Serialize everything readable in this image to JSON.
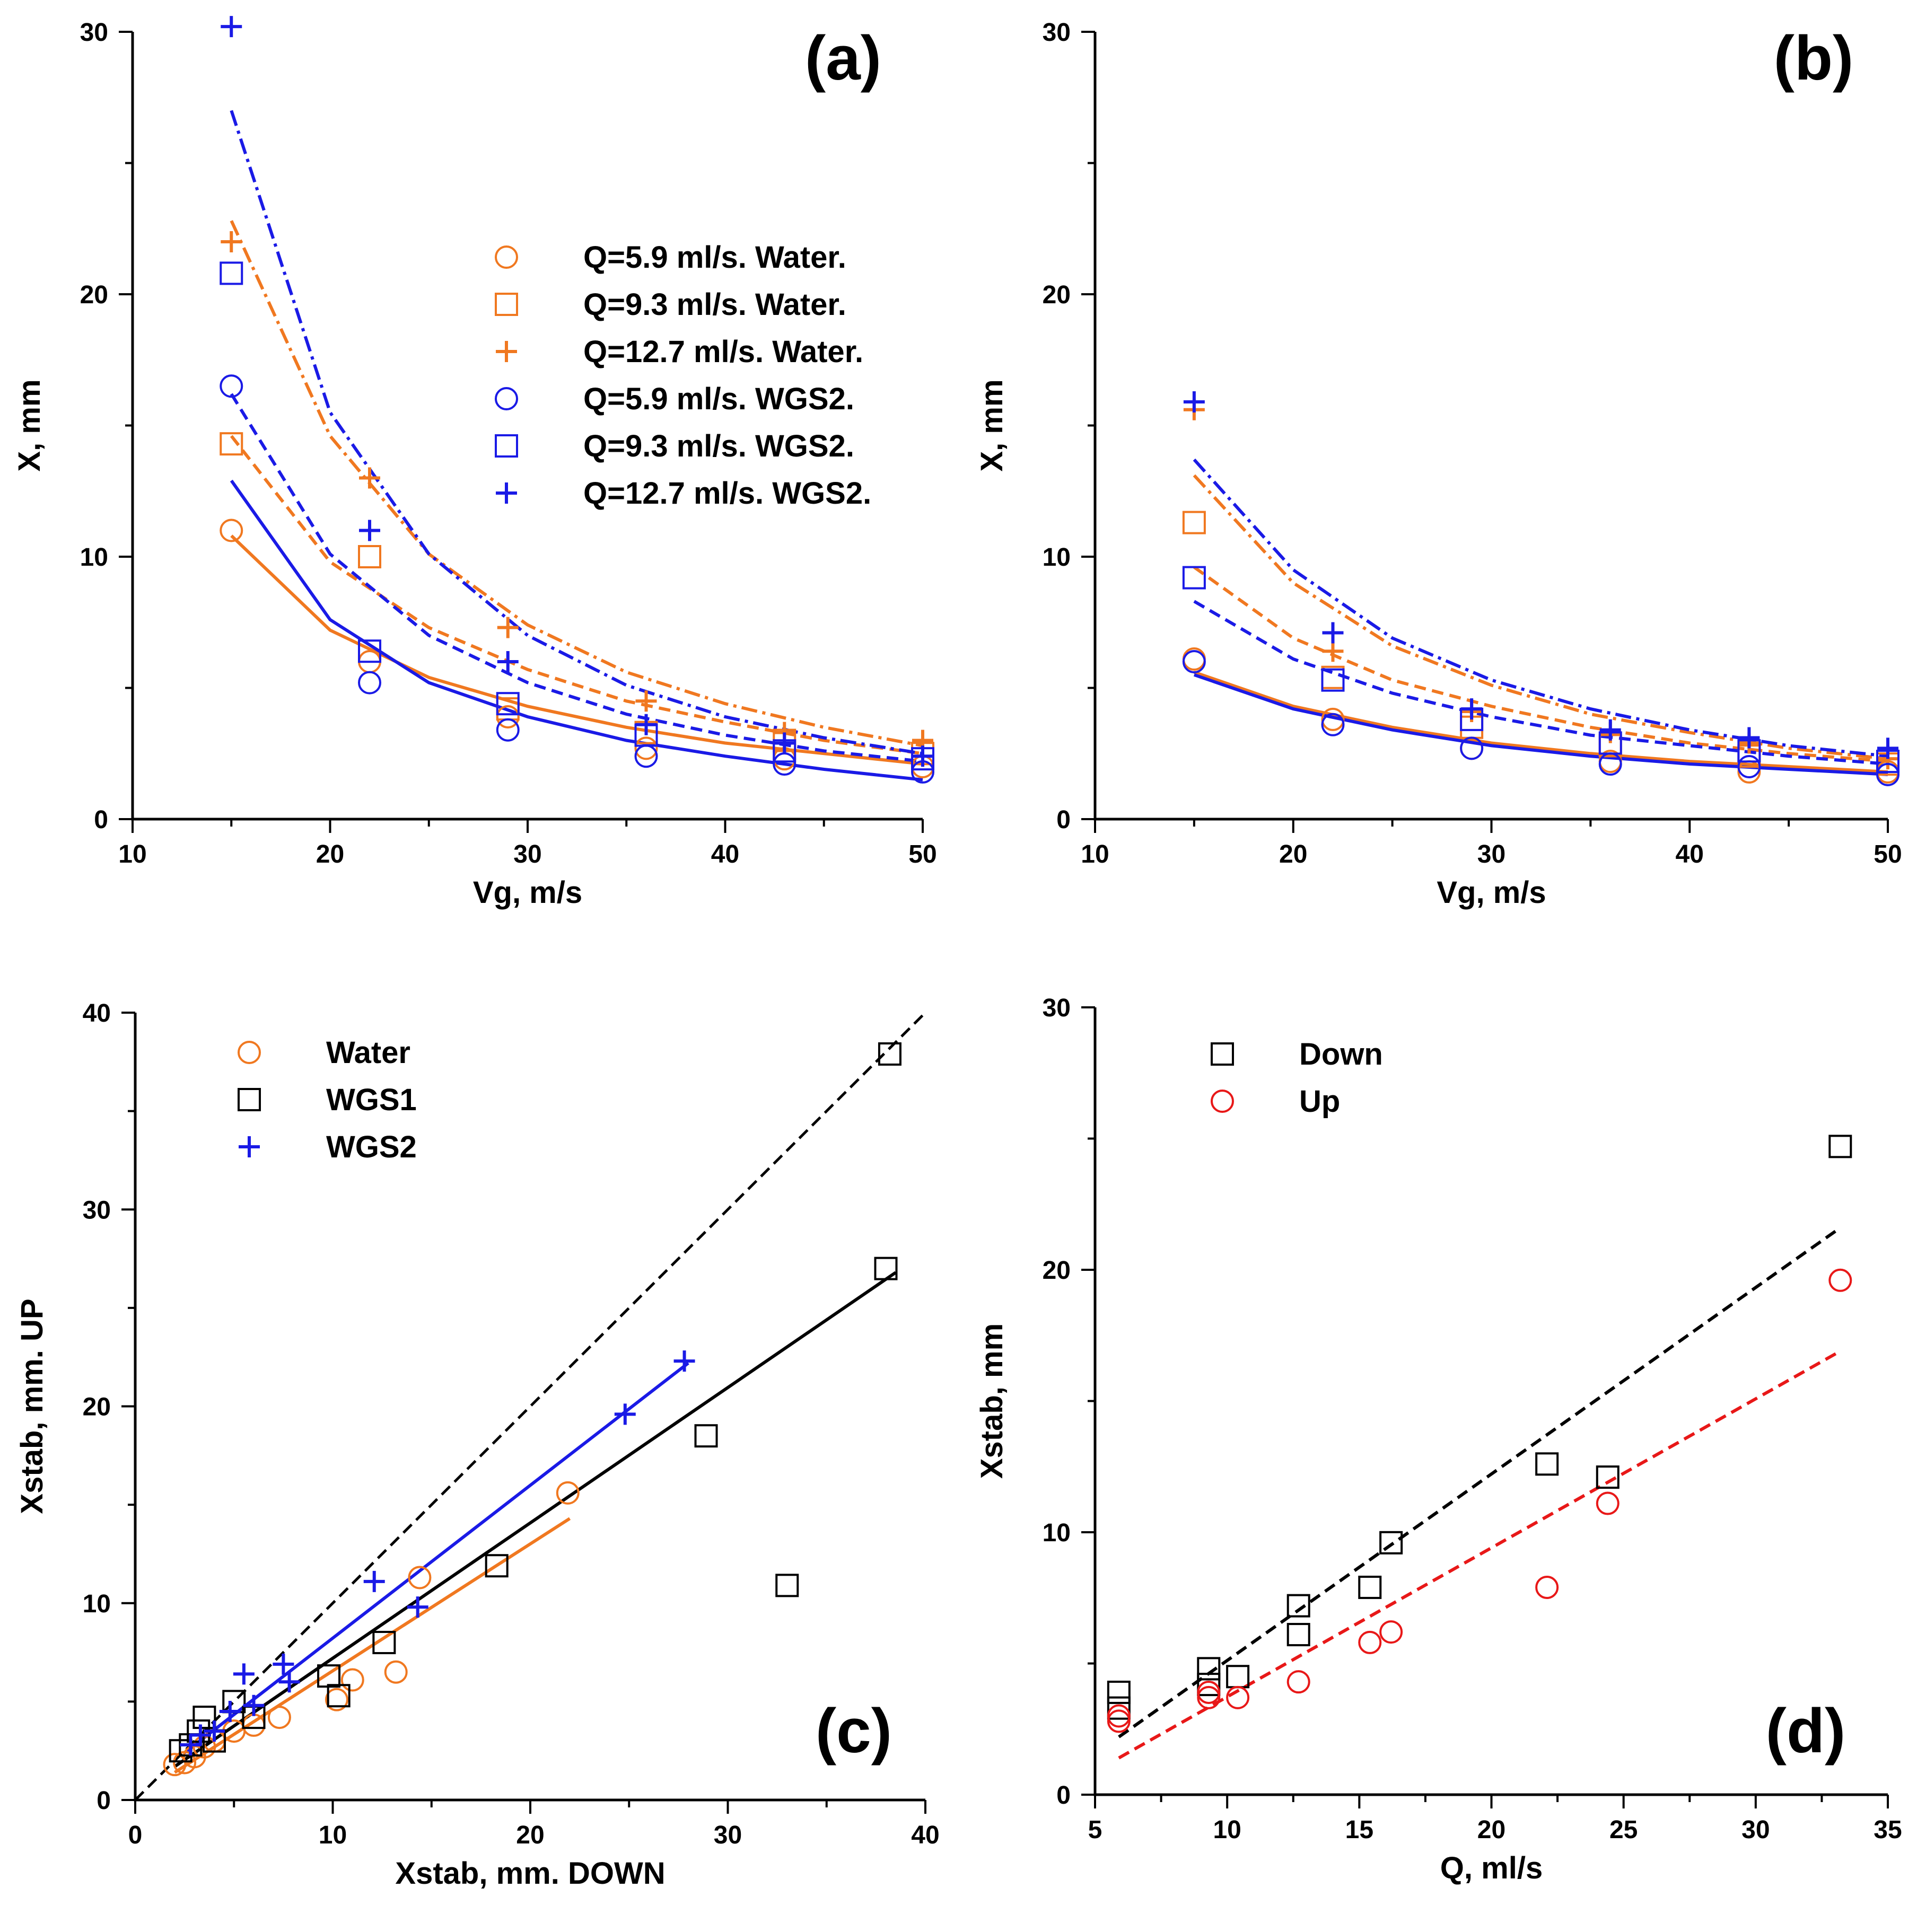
{
  "chart_data": [
    {
      "panel": "a",
      "type": "scatter",
      "title": "(a)",
      "xlabel": "Vg, m/s",
      "ylabel": "X, mm",
      "xlim": [
        10,
        50
      ],
      "ylim": [
        0,
        30
      ],
      "xticks": [
        10,
        20,
        30,
        40,
        50
      ],
      "yticks": [
        0,
        10,
        20,
        30
      ],
      "legend_position": "upper-right",
      "series": [
        {
          "name": "Q=5.9 ml/s. Water.",
          "marker": "circle",
          "color": "#f07820",
          "fit": "solid",
          "x": [
            15,
            22,
            29,
            36,
            43,
            50
          ],
          "y": [
            11.0,
            6.0,
            3.9,
            2.7,
            2.3,
            2.0
          ],
          "fit_x": [
            15,
            20,
            25,
            30,
            35,
            40,
            45,
            50
          ],
          "fit_y": [
            10.8,
            7.2,
            5.4,
            4.3,
            3.5,
            2.9,
            2.5,
            2.1
          ]
        },
        {
          "name": "Q=9.3 ml/s. Water.",
          "marker": "square",
          "color": "#f07820",
          "fit": "dashed",
          "x": [
            15,
            22,
            29,
            36,
            43,
            50
          ],
          "y": [
            14.3,
            10.0,
            4.2,
            3.3,
            3.0,
            2.5
          ],
          "fit_x": [
            15,
            20,
            25,
            30,
            35,
            40,
            45,
            50
          ],
          "fit_y": [
            14.6,
            9.8,
            7.3,
            5.7,
            4.5,
            3.7,
            3.0,
            2.5
          ]
        },
        {
          "name": "Q=12.7 ml/s. Water.",
          "marker": "plus",
          "color": "#f07820",
          "fit": "dashdot",
          "x": [
            15,
            22,
            29,
            36,
            43,
            50
          ],
          "y": [
            22.0,
            13.0,
            7.3,
            4.5,
            3.3,
            3.0
          ],
          "fit_x": [
            15,
            20,
            25,
            30,
            35,
            40,
            45,
            50
          ],
          "fit_y": [
            22.8,
            14.6,
            10.1,
            7.4,
            5.6,
            4.4,
            3.5,
            2.8
          ]
        },
        {
          "name": "Q=5.9 ml/s. WGS2.",
          "marker": "circle",
          "color": "#1a1ae6",
          "fit": "solid",
          "x": [
            15,
            22,
            29,
            36,
            43,
            50
          ],
          "y": [
            16.5,
            5.2,
            3.4,
            2.4,
            2.1,
            1.8
          ],
          "fit_x": [
            15,
            20,
            25,
            30,
            35,
            40,
            45,
            50
          ],
          "fit_y": [
            12.9,
            7.6,
            5.2,
            3.9,
            3.0,
            2.4,
            1.9,
            1.5
          ]
        },
        {
          "name": "Q=9.3 ml/s. WGS2.",
          "marker": "square",
          "color": "#1a1ae6",
          "fit": "dashed",
          "x": [
            15,
            22,
            29,
            36,
            43,
            50
          ],
          "y": [
            20.8,
            6.4,
            4.4,
            3.2,
            2.6,
            2.3
          ],
          "fit_x": [
            15,
            20,
            25,
            30,
            35,
            40,
            45,
            50
          ],
          "fit_y": [
            16.2,
            10.1,
            7.0,
            5.2,
            4.0,
            3.2,
            2.6,
            2.2
          ]
        },
        {
          "name": "Q=12.7 ml/s. WGS2.",
          "marker": "plus",
          "color": "#1a1ae6",
          "fit": "dashdot",
          "x": [
            15,
            22,
            29,
            36,
            43,
            50
          ],
          "y": [
            30.2,
            11.0,
            6.0,
            3.6,
            2.9,
            2.4
          ],
          "fit_x": [
            15,
            20,
            25,
            30,
            35,
            40,
            45,
            50
          ],
          "fit_y": [
            27.0,
            15.5,
            10.1,
            7.0,
            5.1,
            3.9,
            3.1,
            2.5
          ]
        }
      ]
    },
    {
      "panel": "b",
      "type": "scatter",
      "title": "(b)",
      "xlabel": "Vg, m/s",
      "ylabel": "X, mm",
      "xlim": [
        10,
        50
      ],
      "ylim": [
        0,
        30
      ],
      "xticks": [
        10,
        20,
        30,
        40,
        50
      ],
      "yticks": [
        0,
        10,
        20,
        30
      ],
      "series": [
        {
          "name": "Q=5.9 ml/s. Water.",
          "marker": "circle",
          "color": "#f07820",
          "fit": "solid",
          "x": [
            15,
            22,
            29,
            36,
            43,
            50
          ],
          "y": [
            6.1,
            3.8,
            2.7,
            2.2,
            1.8,
            1.8
          ],
          "fit_x": [
            15,
            20,
            25,
            30,
            35,
            40,
            45,
            50
          ],
          "fit_y": [
            5.6,
            4.3,
            3.5,
            2.9,
            2.5,
            2.2,
            2.0,
            1.8
          ]
        },
        {
          "name": "Q=9.3 ml/s. Water.",
          "marker": "square",
          "color": "#f07820",
          "fit": "dashed",
          "x": [
            15,
            22,
            29,
            36,
            43,
            50
          ],
          "y": [
            11.3,
            5.4,
            3.5,
            2.8,
            2.4,
            2.1
          ],
          "fit_x": [
            15,
            20,
            25,
            30,
            35,
            40,
            45,
            50
          ],
          "fit_y": [
            9.6,
            6.9,
            5.3,
            4.3,
            3.5,
            2.9,
            2.5,
            2.2
          ]
        },
        {
          "name": "Q=12.7 ml/s. Water.",
          "marker": "plus",
          "color": "#f07820",
          "fit": "dashdot",
          "x": [
            15,
            22,
            29,
            36,
            43,
            50
          ],
          "y": [
            15.6,
            6.4,
            4.1,
            3.3,
            2.9,
            2.3
          ],
          "fit_x": [
            15,
            20,
            25,
            30,
            35,
            40,
            45,
            50
          ],
          "fit_y": [
            13.1,
            9.0,
            6.6,
            5.1,
            4.0,
            3.3,
            2.7,
            2.3
          ]
        },
        {
          "name": "Q=5.9 ml/s. WGS2.",
          "marker": "circle",
          "color": "#1a1ae6",
          "fit": "solid",
          "x": [
            15,
            22,
            29,
            36,
            43,
            50
          ],
          "y": [
            6.0,
            3.6,
            2.7,
            2.1,
            2.0,
            1.7
          ],
          "fit_x": [
            15,
            20,
            25,
            30,
            35,
            40,
            45,
            50
          ],
          "fit_y": [
            5.5,
            4.2,
            3.4,
            2.8,
            2.4,
            2.1,
            1.9,
            1.7
          ]
        },
        {
          "name": "Q=9.3 ml/s. WGS2.",
          "marker": "square",
          "color": "#1a1ae6",
          "fit": "dashed",
          "x": [
            15,
            22,
            29,
            36,
            43,
            50
          ],
          "y": [
            9.2,
            5.3,
            3.8,
            2.9,
            2.6,
            2.2
          ],
          "fit_x": [
            15,
            20,
            25,
            30,
            35,
            40,
            45,
            50
          ],
          "fit_y": [
            8.3,
            6.1,
            4.8,
            3.9,
            3.2,
            2.8,
            2.4,
            2.1
          ]
        },
        {
          "name": "Q=12.7 ml/s. WGS2.",
          "marker": "plus",
          "color": "#1a1ae6",
          "fit": "dashdot",
          "x": [
            15,
            22,
            29,
            36,
            43,
            50
          ],
          "y": [
            15.9,
            7.1,
            4.2,
            3.4,
            3.1,
            2.7
          ],
          "fit_x": [
            15,
            20,
            25,
            30,
            35,
            40,
            45,
            50
          ],
          "fit_y": [
            13.7,
            9.5,
            6.9,
            5.3,
            4.2,
            3.4,
            2.8,
            2.4
          ]
        }
      ]
    },
    {
      "panel": "c",
      "type": "scatter",
      "title": "(c)",
      "xlabel": "Xstab, mm. DOWN",
      "ylabel": "Xstab, mm. UP",
      "xlim": [
        0,
        40
      ],
      "ylim": [
        0,
        40
      ],
      "xticks": [
        0,
        10,
        20,
        30,
        40
      ],
      "yticks": [
        0,
        10,
        20,
        30,
        40
      ],
      "legend_position": "upper-left",
      "reference_line": {
        "style": "dashed",
        "color": "#000000",
        "x": [
          0,
          40
        ],
        "y": [
          0,
          40
        ]
      },
      "series": [
        {
          "name": "Water",
          "marker": "circle",
          "color": "#f07820",
          "x": [
            2.0,
            2.5,
            3.0,
            3.5,
            4.0,
            5.0,
            6.0,
            7.3,
            10.2,
            11.0,
            13.2,
            14.4,
            21.9
          ],
          "y": [
            1.8,
            1.9,
            2.2,
            2.7,
            3.0,
            3.5,
            3.8,
            4.2,
            5.1,
            6.1,
            6.5,
            11.3,
            15.6
          ],
          "fit": {
            "style": "solid",
            "x": [
              2.0,
              22.0
            ],
            "y": [
              1.4,
              14.3
            ]
          }
        },
        {
          "name": "WGS1",
          "marker": "square",
          "color": "#000000",
          "x": [
            2.3,
            2.8,
            3.2,
            3.5,
            4.0,
            5.0,
            6.0,
            9.8,
            10.3,
            12.6,
            18.3,
            28.9,
            33.0,
            38.0,
            38.2
          ],
          "y": [
            2.5,
            2.8,
            3.5,
            4.2,
            3.0,
            5.0,
            4.2,
            6.3,
            5.3,
            8.0,
            11.9,
            18.5,
            10.9,
            27.0,
            37.9
          ],
          "fit": {
            "style": "solid",
            "x": [
              2.0,
              38.5
            ],
            "y": [
              1.7,
              26.8
            ]
          }
        },
        {
          "name": "WGS2",
          "marker": "plus",
          "color": "#1a1ae6",
          "x": [
            2.8,
            3.3,
            4.0,
            4.8,
            5.5,
            6.0,
            7.5,
            7.8,
            12.1,
            14.3,
            24.8,
            27.8
          ],
          "y": [
            2.8,
            3.3,
            3.5,
            4.5,
            6.4,
            4.8,
            6.9,
            6.0,
            11.1,
            9.8,
            19.6,
            22.3
          ],
          "fit": {
            "style": "solid",
            "x": [
              2.5,
              28.0
            ],
            "y": [
              2.4,
              22.2
            ]
          }
        }
      ]
    },
    {
      "panel": "d",
      "type": "scatter",
      "title": "(d)",
      "xlabel": "Q, ml/s",
      "ylabel": "Xstab, mm",
      "xlim": [
        5,
        35
      ],
      "ylim": [
        0,
        30
      ],
      "xticks": [
        5,
        10,
        15,
        20,
        25,
        30,
        35
      ],
      "yticks": [
        0,
        10,
        20,
        30
      ],
      "legend_position": "upper-left",
      "series": [
        {
          "name": "Down",
          "marker": "square",
          "color": "#000000",
          "x": [
            5.9,
            5.9,
            9.3,
            9.3,
            10.4,
            12.7,
            12.7,
            15.4,
            16.2,
            22.1,
            24.4,
            33.2
          ],
          "y": [
            3.3,
            3.9,
            4.8,
            4.2,
            4.5,
            6.1,
            7.2,
            7.9,
            9.6,
            12.6,
            12.1,
            24.7
          ],
          "fit": {
            "style": "dashed",
            "x": [
              5.9,
              33.2
            ],
            "y": [
              2.2,
              21.6
            ]
          }
        },
        {
          "name": "Up",
          "marker": "circle",
          "color": "#e81818",
          "x": [
            5.9,
            5.9,
            9.3,
            9.3,
            10.4,
            12.7,
            15.4,
            16.2,
            22.1,
            24.4,
            33.2
          ],
          "y": [
            2.8,
            3.0,
            3.7,
            3.9,
            3.7,
            4.3,
            5.8,
            6.2,
            7.9,
            11.1,
            19.6
          ],
          "fit": {
            "style": "dashed",
            "x": [
              5.9,
              33.2
            ],
            "y": [
              1.4,
              16.9
            ]
          }
        }
      ]
    }
  ]
}
